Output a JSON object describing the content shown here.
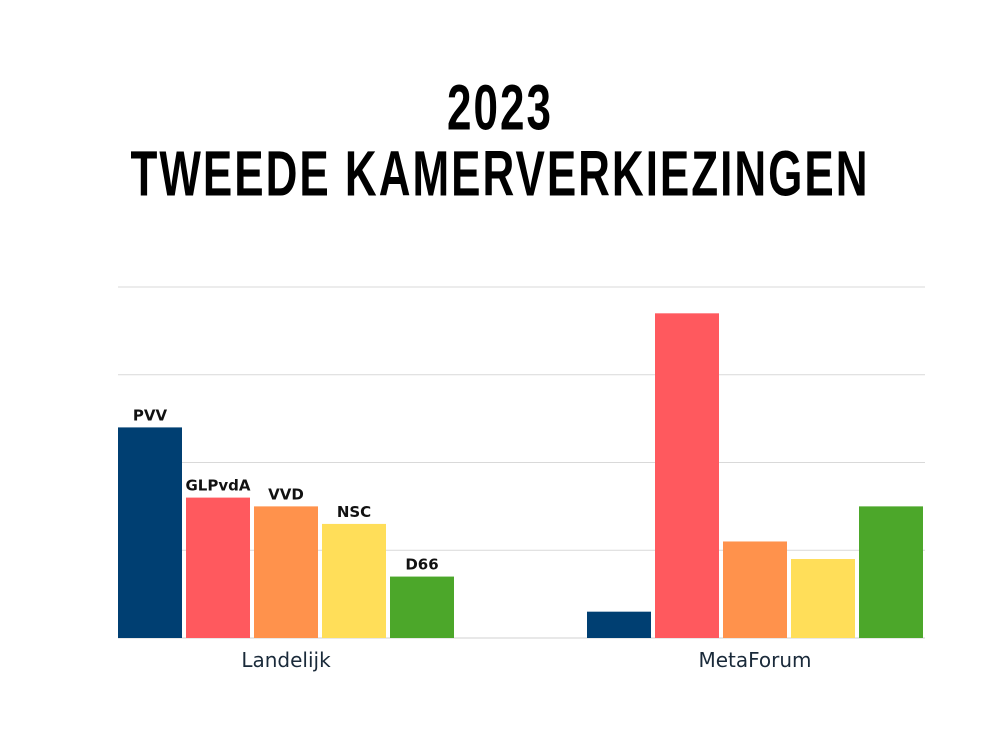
{
  "title": {
    "line1": "2023",
    "line2": "TWEEDE KAMERVERKIEZINGEN"
  },
  "colors": {
    "PVV": "#003f72",
    "GLPvdA": "#ff595e",
    "VVD": "#ff924c",
    "NSC": "#ffde59",
    "D66": "#4ca72a",
    "grid": "#d9d9d9"
  },
  "chart_data": {
    "type": "bar",
    "title": "2023 TWEEDE KAMERVERKIEZINGEN",
    "categories": [
      "Landelijk",
      "MetaForum"
    ],
    "series": [
      {
        "name": "PVV",
        "values": [
          24,
          3
        ]
      },
      {
        "name": "GLPvdA",
        "values": [
          16,
          37
        ]
      },
      {
        "name": "VVD",
        "values": [
          15,
          11
        ]
      },
      {
        "name": "NSC",
        "values": [
          13,
          9
        ]
      },
      {
        "name": "D66",
        "values": [
          7,
          15
        ]
      }
    ],
    "value_labels_on_category": "Landelijk",
    "ylim": [
      0,
      40
    ],
    "grid": true,
    "legend": "none"
  }
}
